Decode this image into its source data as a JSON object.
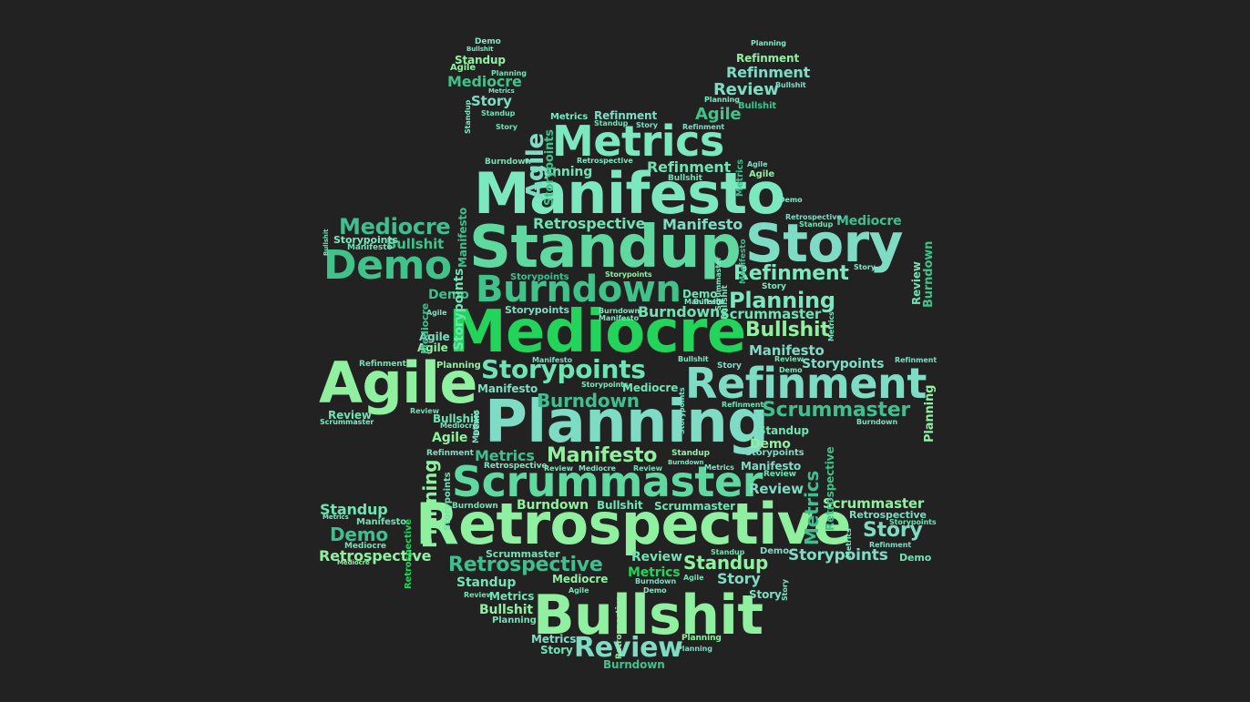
{
  "palette": [
    "#7ce8c0",
    "#5fd9a0",
    "#40c28a",
    "#22d45a",
    "#8ff0a0",
    "#6fe3b4",
    "#3fbf8f",
    "#9ce8a8",
    "#4fe070",
    "#7fdcc4"
  ],
  "words": [
    "Manifesto",
    "Standup",
    "Story",
    "Metrics",
    "Burndown",
    "Mediocre",
    "Agile",
    "Refinment",
    "Planning",
    "Retrospective",
    "Scrummaster",
    "Bullshit",
    "Review",
    "Storypoints",
    "Demo"
  ]
}
